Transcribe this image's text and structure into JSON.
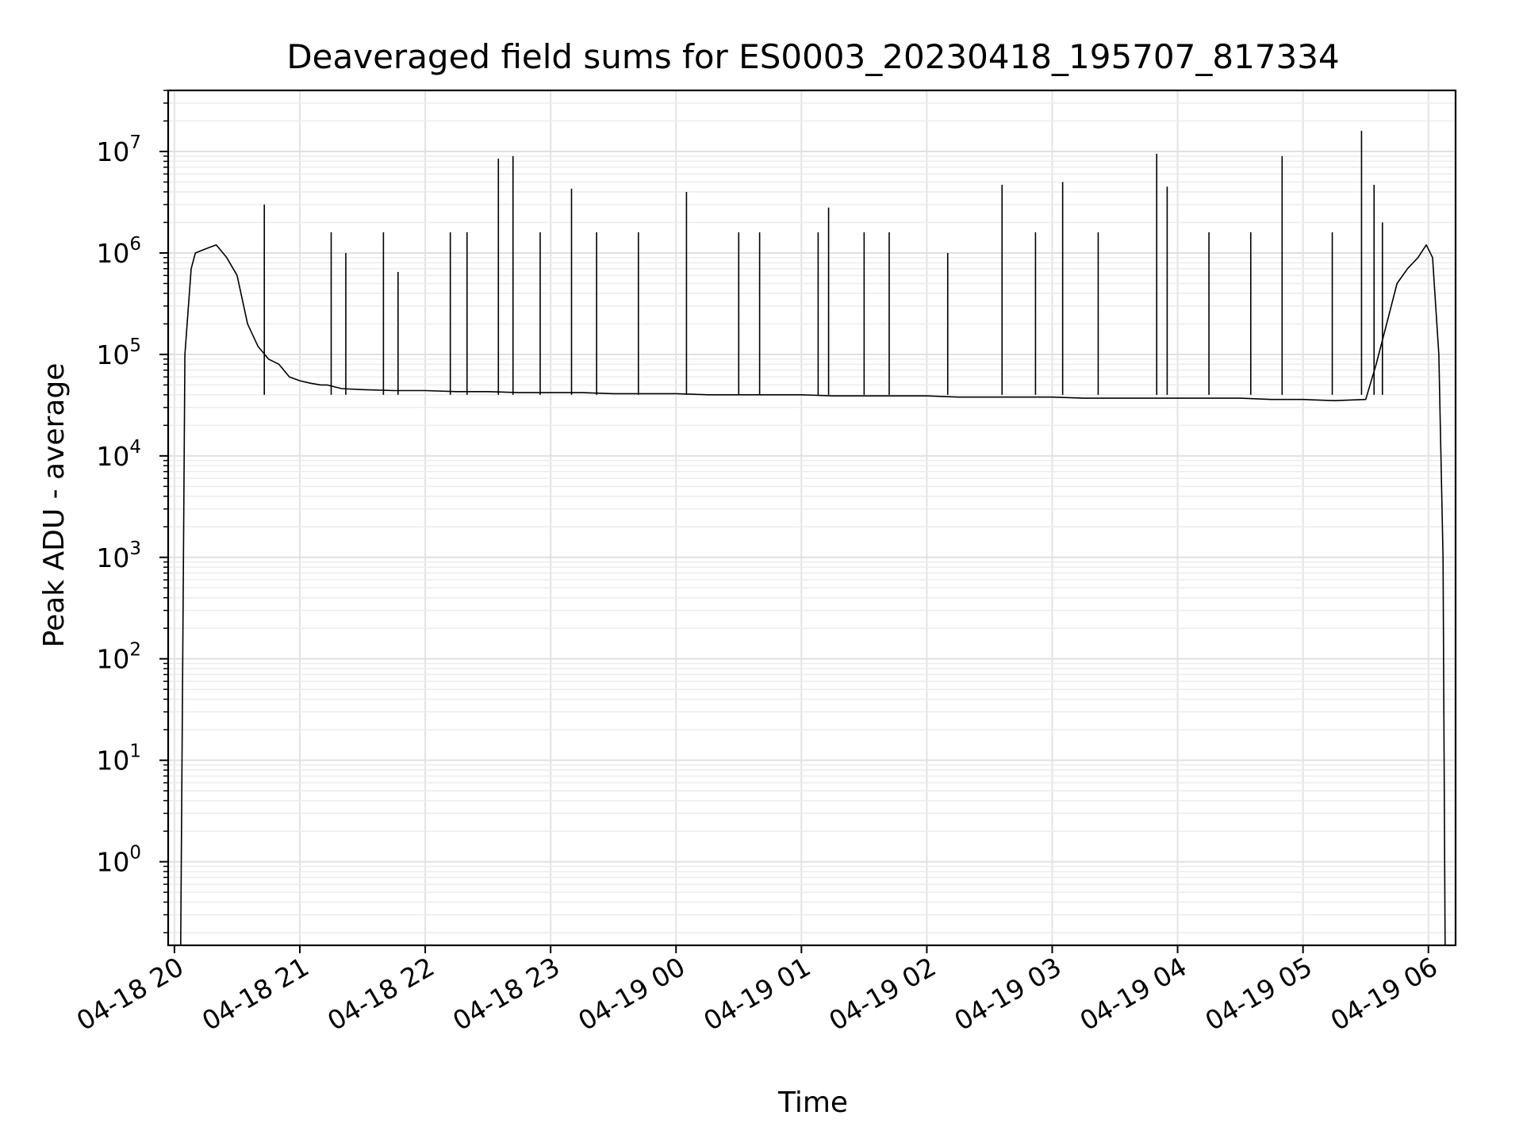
{
  "chart_data": {
    "type": "line",
    "title": "Deaveraged field sums for ES0003_20230418_195707_817334",
    "xlabel": "Time",
    "ylabel": "Peak ADU - average",
    "y_scale": "log",
    "ylim": [
      0.15,
      40000000
    ],
    "xlim": [
      "2023-04-18 19:57:00",
      "2023-04-19 06:13:00"
    ],
    "grid": true,
    "x_ticks": [
      {
        "value": "2023-04-18 20:00",
        "label": "04-18 20"
      },
      {
        "value": "2023-04-18 21:00",
        "label": "04-18 21"
      },
      {
        "value": "2023-04-18 22:00",
        "label": "04-18 22"
      },
      {
        "value": "2023-04-18 23:00",
        "label": "04-18 23"
      },
      {
        "value": "2023-04-19 00:00",
        "label": "04-19 00"
      },
      {
        "value": "2023-04-19 01:00",
        "label": "04-19 01"
      },
      {
        "value": "2023-04-19 02:00",
        "label": "04-19 02"
      },
      {
        "value": "2023-04-19 03:00",
        "label": "04-19 03"
      },
      {
        "value": "2023-04-19 04:00",
        "label": "04-19 04"
      },
      {
        "value": "2023-04-19 05:00",
        "label": "04-19 05"
      },
      {
        "value": "2023-04-19 06:00",
        "label": "04-19 06"
      }
    ],
    "y_ticks": [
      {
        "value": 1,
        "base": "10",
        "exp": "0"
      },
      {
        "value": 10,
        "base": "10",
        "exp": "1"
      },
      {
        "value": 100,
        "base": "10",
        "exp": "2"
      },
      {
        "value": 1000,
        "base": "10",
        "exp": "3"
      },
      {
        "value": 10000,
        "base": "10",
        "exp": "4"
      },
      {
        "value": 100000,
        "base": "10",
        "exp": "5"
      },
      {
        "value": 1000000,
        "base": "10",
        "exp": "6"
      },
      {
        "value": 10000000,
        "base": "10",
        "exp": "7"
      }
    ],
    "series": [
      {
        "color": "#000000",
        "x": [
          "2023-04-18 20:03:00",
          "2023-04-18 20:05:00",
          "2023-04-18 20:08:00",
          "2023-04-18 20:10:00",
          "2023-04-18 20:15:00",
          "2023-04-18 20:20:00",
          "2023-04-18 20:25:00",
          "2023-04-18 20:30:00",
          "2023-04-18 20:35:00",
          "2023-04-18 20:40:00",
          "2023-04-18 20:45:00",
          "2023-04-18 20:50:00",
          "2023-04-18 20:55:00",
          "2023-04-18 21:00:00",
          "2023-04-18 21:05:00",
          "2023-04-18 21:10:00",
          "2023-04-18 21:13:00",
          "2023-04-18 21:20:00",
          "2023-04-18 21:30:00",
          "2023-04-18 21:45:00",
          "2023-04-18 22:00:00",
          "2023-04-18 22:15:00",
          "2023-04-18 22:30:00",
          "2023-04-18 22:45:00",
          "2023-04-18 23:00:00",
          "2023-04-18 23:15:00",
          "2023-04-18 23:30:00",
          "2023-04-18 23:45:00",
          "2023-04-19 00:00:00",
          "2023-04-19 00:15:00",
          "2023-04-19 00:30:00",
          "2023-04-19 00:45:00",
          "2023-04-19 01:00:00",
          "2023-04-19 01:15:00",
          "2023-04-19 01:30:00",
          "2023-04-19 01:45:00",
          "2023-04-19 02:00:00",
          "2023-04-19 02:15:00",
          "2023-04-19 02:30:00",
          "2023-04-19 02:45:00",
          "2023-04-19 03:00:00",
          "2023-04-19 03:15:00",
          "2023-04-19 03:30:00",
          "2023-04-19 03:45:00",
          "2023-04-19 04:00:00",
          "2023-04-19 04:15:00",
          "2023-04-19 04:30:00",
          "2023-04-19 04:45:00",
          "2023-04-19 05:00:00",
          "2023-04-19 05:15:00",
          "2023-04-19 05:30:00",
          "2023-04-19 05:35:00",
          "2023-04-19 05:40:00",
          "2023-04-19 05:45:00",
          "2023-04-19 05:50:00",
          "2023-04-19 05:55:00",
          "2023-04-19 05:59:00",
          "2023-04-19 06:02:00",
          "2023-04-19 06:05:00",
          "2023-04-19 06:07:00",
          "2023-04-19 06:08:00"
        ],
        "y": [
          0.15,
          100000,
          700000,
          1000000,
          1100000,
          1200000,
          900000,
          600000,
          200000,
          120000,
          90000,
          80000,
          60000,
          55000,
          52000,
          50000,
          50000,
          46000,
          45000,
          44000,
          44000,
          43000,
          43000,
          42000,
          42000,
          42000,
          41000,
          41000,
          41000,
          40000,
          40000,
          40000,
          40000,
          39000,
          39000,
          39000,
          39000,
          38000,
          38000,
          38000,
          38000,
          37000,
          37000,
          37000,
          37000,
          37000,
          37000,
          36000,
          36000,
          35000,
          36000,
          80000,
          200000,
          500000,
          700000,
          900000,
          1200000,
          900000,
          100000,
          1000,
          0.15
        ]
      }
    ],
    "spikes": [
      {
        "x": "2023-04-18 20:43:00",
        "y": 3000000
      },
      {
        "x": "2023-04-18 21:15:00",
        "y": 1600000
      },
      {
        "x": "2023-04-18 21:22:00",
        "y": 1000000
      },
      {
        "x": "2023-04-18 21:40:00",
        "y": 1600000
      },
      {
        "x": "2023-04-18 21:47:00",
        "y": 650000
      },
      {
        "x": "2023-04-18 22:12:00",
        "y": 1600000
      },
      {
        "x": "2023-04-18 22:20:00",
        "y": 1600000
      },
      {
        "x": "2023-04-18 22:35:00",
        "y": 8500000
      },
      {
        "x": "2023-04-18 22:42:00",
        "y": 9000000
      },
      {
        "x": "2023-04-18 22:55:00",
        "y": 1600000
      },
      {
        "x": "2023-04-18 23:10:00",
        "y": 4300000
      },
      {
        "x": "2023-04-18 23:22:00",
        "y": 1600000
      },
      {
        "x": "2023-04-18 23:42:00",
        "y": 1600000
      },
      {
        "x": "2023-04-19 00:05:00",
        "y": 4000000
      },
      {
        "x": "2023-04-19 00:30:00",
        "y": 1600000
      },
      {
        "x": "2023-04-19 00:40:00",
        "y": 1600000
      },
      {
        "x": "2023-04-19 01:08:00",
        "y": 1600000
      },
      {
        "x": "2023-04-19 01:13:00",
        "y": 2800000
      },
      {
        "x": "2023-04-19 01:30:00",
        "y": 1600000
      },
      {
        "x": "2023-04-19 01:42:00",
        "y": 1600000
      },
      {
        "x": "2023-04-19 02:10:00",
        "y": 1000000
      },
      {
        "x": "2023-04-19 02:36:00",
        "y": 4700000
      },
      {
        "x": "2023-04-19 02:52:00",
        "y": 1600000
      },
      {
        "x": "2023-04-19 03:05:00",
        "y": 5000000
      },
      {
        "x": "2023-04-19 03:22:00",
        "y": 1600000
      },
      {
        "x": "2023-04-19 03:50:00",
        "y": 9500000
      },
      {
        "x": "2023-04-19 03:55:00",
        "y": 4500000
      },
      {
        "x": "2023-04-19 04:15:00",
        "y": 1600000
      },
      {
        "x": "2023-04-19 04:35:00",
        "y": 1600000
      },
      {
        "x": "2023-04-19 04:50:00",
        "y": 9000000
      },
      {
        "x": "2023-04-19 05:14:00",
        "y": 1600000
      },
      {
        "x": "2023-04-19 05:28:00",
        "y": 16000000
      },
      {
        "x": "2023-04-19 05:34:00",
        "y": 4700000
      },
      {
        "x": "2023-04-19 05:38:00",
        "y": 2000000
      }
    ]
  }
}
